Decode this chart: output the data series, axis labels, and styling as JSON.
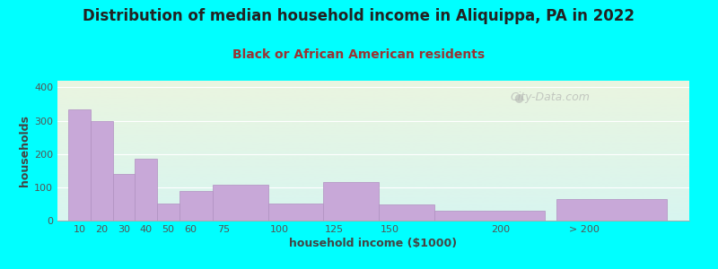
{
  "title": "Distribution of median household income in Aliquippa, PA in 2022",
  "subtitle": "Black or African American residents",
  "xlabel": "household income ($1000)",
  "ylabel": "households",
  "background_color": "#00FFFF",
  "plot_bg_top": "#eaf5e0",
  "plot_bg_bottom": "#d8f5f0",
  "bar_color": "#c8a8d8",
  "bar_edge_color": "#b090c0",
  "values": [
    335,
    300,
    140,
    185,
    52,
    90,
    108,
    52,
    115,
    48,
    30,
    65
  ],
  "bar_widths": [
    10,
    10,
    10,
    10,
    10,
    15,
    25,
    25,
    25,
    25,
    50,
    50
  ],
  "bar_lefts": [
    5,
    15,
    25,
    35,
    45,
    55,
    70,
    95,
    120,
    145,
    170,
    225
  ],
  "xlim": [
    0,
    285
  ],
  "ylim": [
    0,
    420
  ],
  "yticks": [
    0,
    100,
    200,
    300,
    400
  ],
  "title_fontsize": 12,
  "subtitle_fontsize": 10,
  "axis_label_fontsize": 9,
  "tick_fontsize": 8,
  "title_color": "#222222",
  "subtitle_color": "#993333",
  "axis_label_color": "#444444",
  "tick_color": "#555555",
  "watermark_text": "City-Data.com",
  "xtick_positions": [
    10,
    20,
    30,
    40,
    50,
    60,
    75,
    100,
    125,
    150,
    200,
    237.5
  ],
  "xtick_labels": [
    "10",
    "20",
    "30",
    "40",
    "50",
    "60",
    "75",
    "100",
    "125",
    "150",
    "200",
    "> 200"
  ]
}
